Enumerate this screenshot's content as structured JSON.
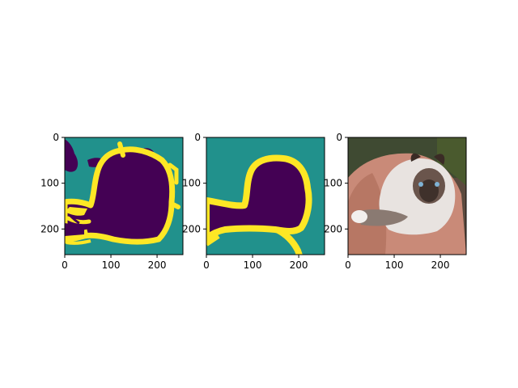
{
  "chart_data": [
    {
      "type": "heatmap",
      "content": "segmentation mask (prediction)",
      "colormap": "viridis",
      "classes": {
        "background": "#21918c",
        "object": "#440154",
        "boundary": "#fde725"
      },
      "x": {
        "lim": [
          0,
          256
        ],
        "ticks": [
          0,
          100,
          200
        ],
        "tick_labels": [
          "0",
          "100",
          "200"
        ]
      },
      "y": {
        "lim": [
          256,
          0
        ],
        "ticks": [
          0,
          100,
          200
        ],
        "tick_labels": [
          "0",
          "100",
          "200"
        ]
      },
      "grid": false,
      "title": "",
      "xlabel": "",
      "ylabel": ""
    },
    {
      "type": "heatmap",
      "content": "segmentation mask (ground truth)",
      "colormap": "viridis",
      "classes": {
        "background": "#21918c",
        "object": "#440154",
        "boundary": "#fde725"
      },
      "x": {
        "lim": [
          0,
          256
        ],
        "ticks": [
          0,
          100,
          200
        ],
        "tick_labels": [
          "0",
          "100",
          "200"
        ]
      },
      "y": {
        "lim": [
          256,
          0
        ],
        "ticks": [
          0,
          100,
          200
        ],
        "tick_labels": [
          "0",
          "100",
          "200"
        ]
      },
      "grid": false,
      "title": "",
      "xlabel": "",
      "ylabel": ""
    },
    {
      "type": "image",
      "content": "photo of a ragdoll cat lying on a person's arm",
      "x": {
        "lim": [
          0,
          256
        ],
        "ticks": [
          0,
          100,
          200
        ],
        "tick_labels": [
          "0",
          "100",
          "200"
        ]
      },
      "y": {
        "lim": [
          256,
          0
        ],
        "ticks": [
          0,
          100,
          200
        ],
        "tick_labels": [
          "0",
          "100",
          "200"
        ]
      },
      "grid": false,
      "title": "",
      "xlabel": "",
      "ylabel": ""
    }
  ]
}
